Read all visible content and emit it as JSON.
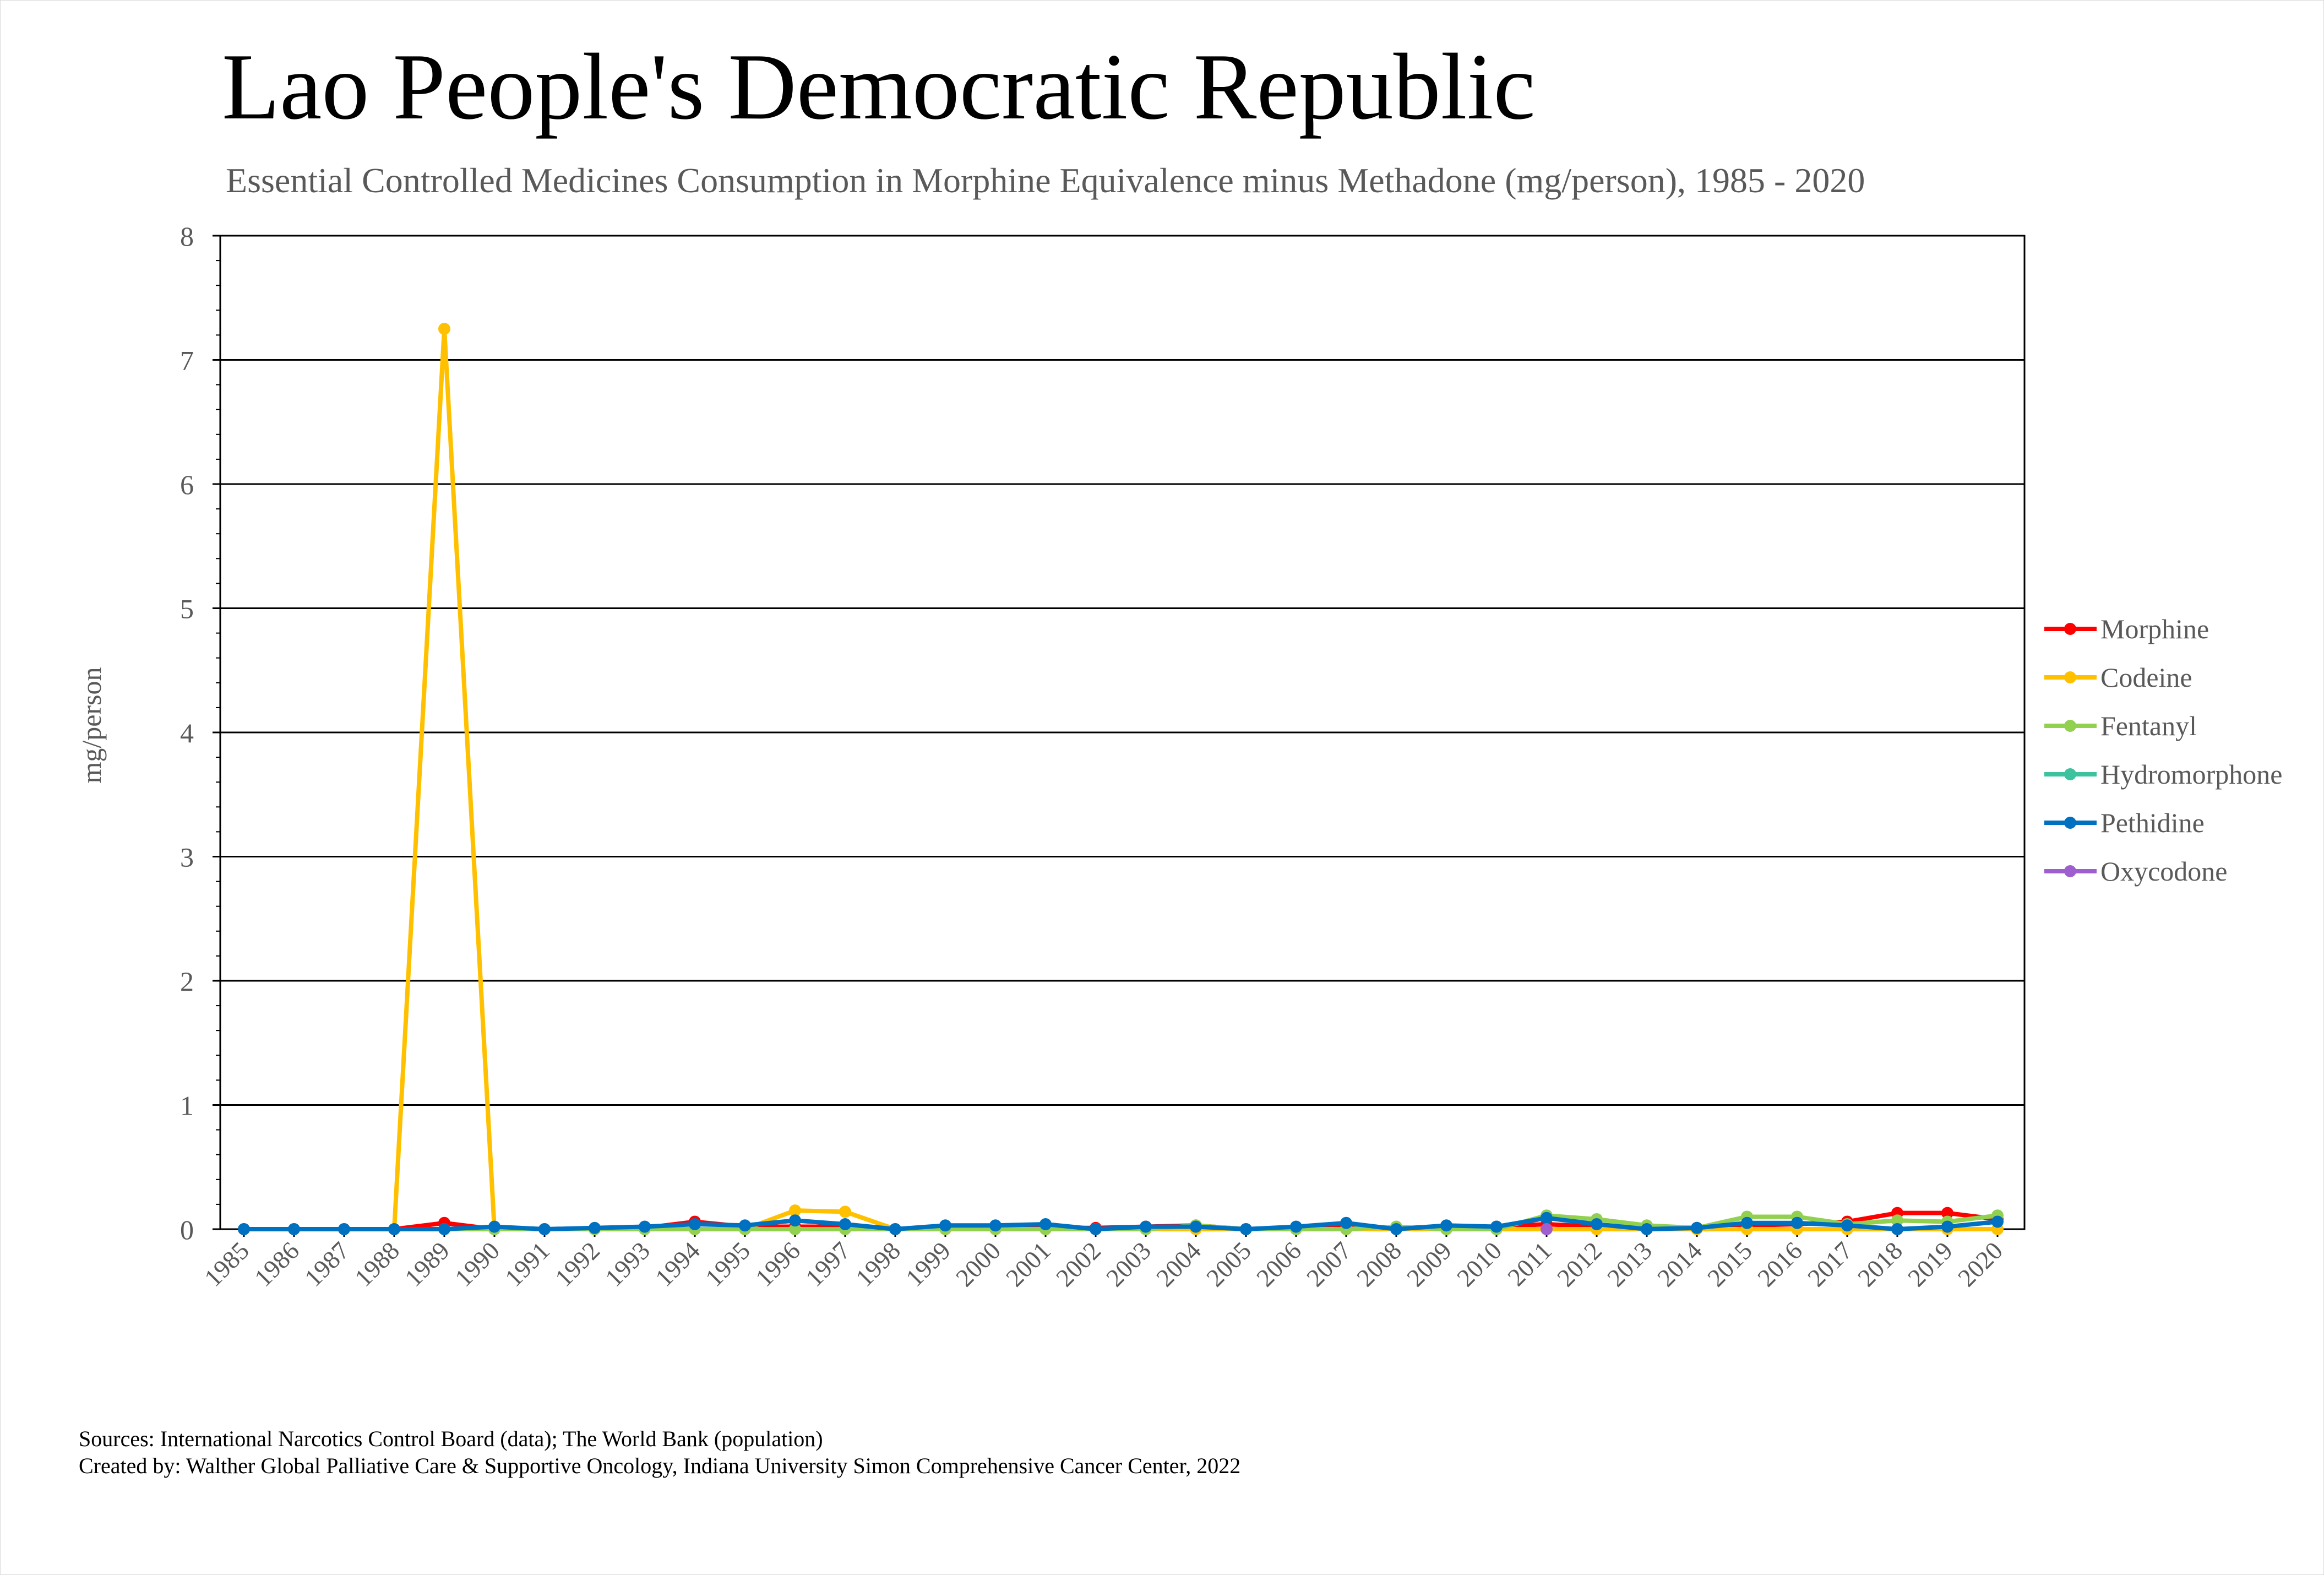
{
  "chart_data": {
    "type": "line",
    "title": "Lao People's Democratic Republic",
    "subtitle": "Essential Controlled Medicines Consumption in Morphine Equivalence minus Methadone (mg/person), 1985 - 2020",
    "ylabel": "mg/person",
    "xlabel": "",
    "ylim": [
      0,
      8
    ],
    "yticks": [
      "0",
      "1",
      "2",
      "3",
      "4",
      "5",
      "6",
      "7",
      "8"
    ],
    "grid": true,
    "legend_position": "right",
    "categories": [
      "1985",
      "1986",
      "1987",
      "1988",
      "1989",
      "1990",
      "1991",
      "1992",
      "1993",
      "1994",
      "1995",
      "1996",
      "1997",
      "1998",
      "1999",
      "2000",
      "2001",
      "2002",
      "2003",
      "2004",
      "2005",
      "2006",
      "2007",
      "2008",
      "2009",
      "2010",
      "2011",
      "2012",
      "2013",
      "2014",
      "2015",
      "2016",
      "2017",
      "2018",
      "2019",
      "2020"
    ],
    "series": [
      {
        "name": "Morphine",
        "color": "#ff0000",
        "values": [
          0,
          0,
          0,
          0,
          0.05,
          0,
          0,
          0,
          0.01,
          0.06,
          0.02,
          0.02,
          0.02,
          0,
          0.01,
          0.01,
          0.01,
          0.01,
          0.02,
          0.03,
          0,
          0.01,
          0.02,
          0.01,
          0.02,
          0.02,
          0.04,
          0.02,
          0.01,
          0.01,
          0.03,
          0.04,
          0.06,
          0.13,
          0.13,
          0.08
        ]
      },
      {
        "name": "Codeine",
        "color": "#ffc000",
        "values": [
          null,
          null,
          null,
          0,
          7.25,
          0,
          0,
          0,
          0,
          0,
          0,
          0.15,
          0.14,
          0,
          0,
          0,
          0,
          0,
          0,
          0,
          0,
          0,
          0,
          0,
          0,
          0,
          0,
          0,
          0,
          0,
          0,
          0,
          0,
          0,
          0,
          0
        ]
      },
      {
        "name": "Fentanyl",
        "color": "#92d050",
        "values": [
          0,
          0,
          0,
          0,
          0,
          0,
          0,
          0,
          0,
          0,
          0,
          0,
          0,
          0,
          0,
          0,
          0,
          0,
          0,
          0.03,
          0,
          0,
          0,
          0.02,
          0,
          0,
          0.11,
          0.08,
          0.03,
          0.01,
          0.1,
          0.1,
          0.04,
          0.07,
          0.06,
          0.11
        ]
      },
      {
        "name": "Hydromorphone",
        "color": "#3cc29c",
        "values": [
          null,
          null,
          null,
          null,
          null,
          null,
          null,
          null,
          null,
          null,
          null,
          null,
          null,
          null,
          null,
          null,
          null,
          null,
          null,
          null,
          null,
          null,
          null,
          null,
          null,
          null,
          null,
          null,
          null,
          null,
          null,
          null,
          null,
          null,
          null,
          null
        ]
      },
      {
        "name": "Pethidine",
        "color": "#0070c0",
        "values": [
          0,
          0,
          0,
          0,
          0,
          0.02,
          0,
          0.01,
          0.02,
          0.04,
          0.03,
          0.07,
          0.04,
          0,
          0.03,
          0.03,
          0.04,
          0,
          0.02,
          0.02,
          0,
          0.02,
          0.05,
          0,
          0.03,
          0.02,
          0.09,
          0.04,
          0,
          0.01,
          0.05,
          0.05,
          0.03,
          0,
          0.02,
          0.06
        ]
      },
      {
        "name": "Oxycodone",
        "color": "#9e5ecf",
        "values": [
          null,
          null,
          null,
          null,
          null,
          null,
          null,
          null,
          null,
          null,
          null,
          null,
          null,
          null,
          null,
          null,
          null,
          null,
          null,
          null,
          null,
          null,
          null,
          null,
          null,
          null,
          0,
          null,
          null,
          null,
          null,
          null,
          null,
          null,
          null,
          null
        ]
      }
    ]
  },
  "footer": {
    "line1": "Sources: International Narcotics Control Board (data); The World Bank (population)",
    "line2": "Created by: Walther Global Palliative Care & Supportive Oncology, Indiana University Simon Comprehensive Cancer Center, 2022"
  }
}
